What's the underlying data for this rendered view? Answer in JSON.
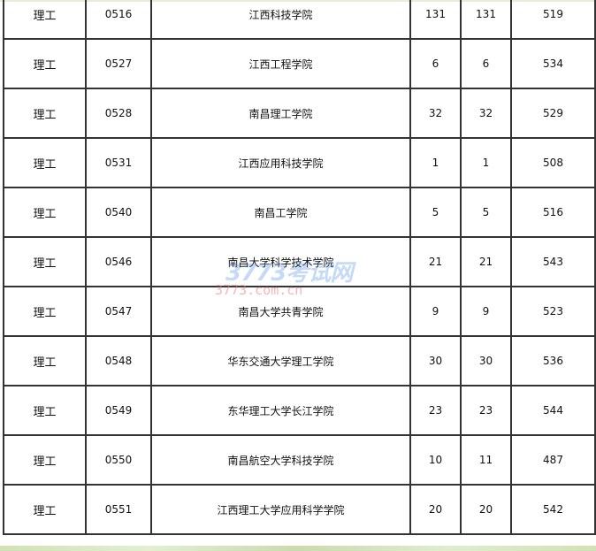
{
  "table": {
    "rows": [
      [
        "理工",
        "0516",
        "江西科技学院",
        "131",
        "131",
        "519"
      ],
      [
        "理工",
        "0527",
        "江西工程学院",
        "6",
        "6",
        "534"
      ],
      [
        "理工",
        "0528",
        "南昌理工学院",
        "32",
        "32",
        "529"
      ],
      [
        "理工",
        "0531",
        "江西应用科技学院",
        "1",
        "1",
        "508"
      ],
      [
        "理工",
        "0540",
        "南昌工学院",
        "5",
        "5",
        "516"
      ],
      [
        "理工",
        "0546",
        "南昌大学科学技术学院",
        "21",
        "21",
        "543"
      ],
      [
        "理工",
        "0547",
        "南昌大学共青学院",
        "9",
        "9",
        "523"
      ],
      [
        "理工",
        "0548",
        "华东交通大学理工学院",
        "30",
        "30",
        "536"
      ],
      [
        "理工",
        "0549",
        "东华理工大学长江学院",
        "23",
        "23",
        "544"
      ],
      [
        "理工",
        "0550",
        "南昌航空大学科技学院",
        "10",
        "11",
        "487"
      ],
      [
        "理工",
        "0551",
        "江西理工大学应用科学学院",
        "20",
        "20",
        "542"
      ]
    ]
  },
  "watermark": {
    "logo": "3773考试网",
    "url": "3773.com.cn"
  }
}
